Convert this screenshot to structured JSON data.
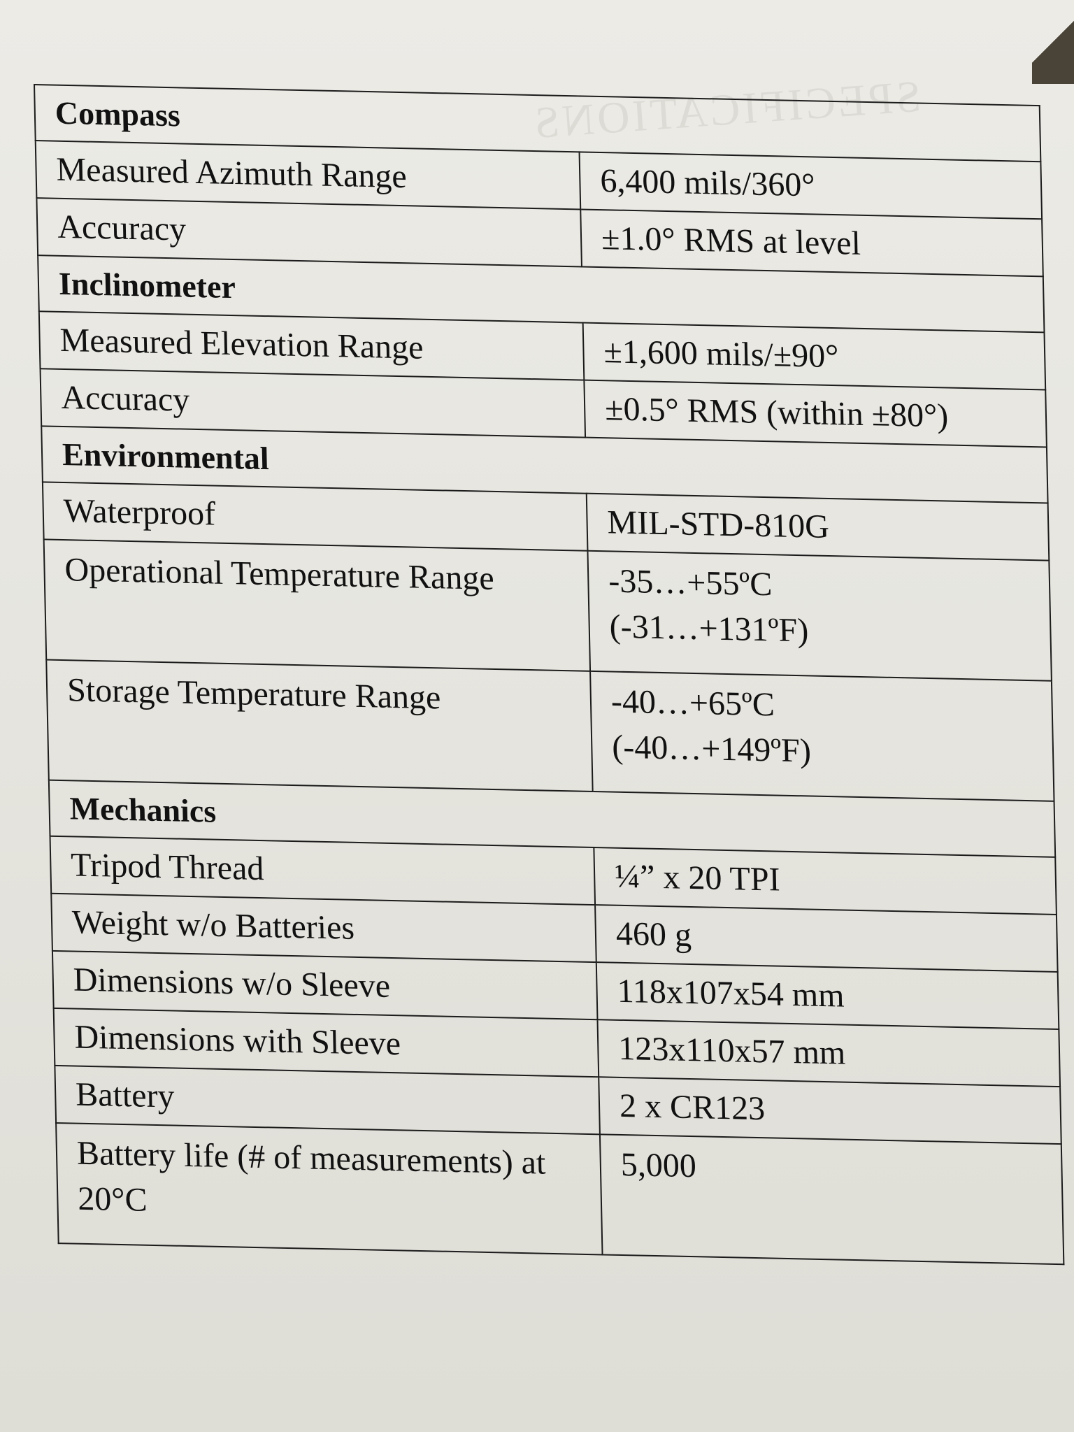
{
  "sections": [
    {
      "title": "Compass",
      "rows": [
        {
          "label": "Measured Azimuth Range",
          "value": "6,400 mils/360°"
        },
        {
          "label": "Accuracy",
          "value": "±1.0° RMS at level"
        }
      ]
    },
    {
      "title": "Inclinometer",
      "rows": [
        {
          "label": "Measured Elevation Range",
          "value": "±1,600 mils/±90°"
        },
        {
          "label": "Accuracy",
          "value": "±0.5° RMS (within ±80°)"
        }
      ]
    },
    {
      "title": "Environmental",
      "rows": [
        {
          "label": "Waterproof",
          "value": "MIL-STD-810G"
        },
        {
          "label": "Operational Temperature Range",
          "value": "-35…+55ºC",
          "value2": "(-31…+131ºF)"
        },
        {
          "label": "Storage Temperature Range",
          "value": "-40…+65ºC",
          "value2": "(-40…+149ºF)"
        }
      ]
    },
    {
      "title": "Mechanics",
      "rows": [
        {
          "label": "Tripod Thread",
          "value": "¼” x 20 TPI"
        },
        {
          "label": "Weight w/o Batteries",
          "value": "460 g"
        },
        {
          "label": "Dimensions w/o Sleeve",
          "value": "118x107x54 mm"
        },
        {
          "label": "Dimensions with Sleeve",
          "value": "123x110x57 mm"
        },
        {
          "label": "Battery",
          "value": "2 x CR123"
        },
        {
          "label": "Battery life (# of measurements) at 20°C",
          "value": "5,000"
        }
      ]
    }
  ],
  "bleed_through": "SPECIFICATIONS"
}
